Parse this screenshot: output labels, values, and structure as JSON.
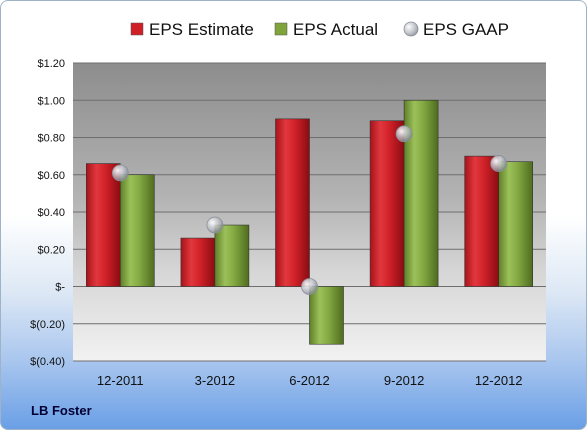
{
  "company": "LB Foster",
  "colors": {
    "estimate": "#d01f26",
    "actual": "#7fa53a",
    "gaap": "#b8bcc4"
  },
  "chart_data": {
    "type": "bar",
    "categories": [
      "12-2011",
      "3-2012",
      "6-2012",
      "9-2012",
      "12-2012"
    ],
    "series": [
      {
        "name": "EPS Estimate",
        "type": "bar",
        "values": [
          0.66,
          0.26,
          0.9,
          0.89,
          0.7
        ]
      },
      {
        "name": "EPS Actual",
        "type": "bar",
        "values": [
          0.6,
          0.33,
          -0.31,
          1.0,
          0.67
        ]
      },
      {
        "name": "EPS GAAP",
        "type": "scatter",
        "values": [
          0.61,
          0.33,
          0.0,
          0.82,
          0.66
        ]
      }
    ],
    "yticks": [
      {
        "value": 1.2,
        "label": "$1.20"
      },
      {
        "value": 1.0,
        "label": "$1.00"
      },
      {
        "value": 0.8,
        "label": "$0.80"
      },
      {
        "value": 0.6,
        "label": "$0.60"
      },
      {
        "value": 0.4,
        "label": "$0.40"
      },
      {
        "value": 0.2,
        "label": "$0.20"
      },
      {
        "value": 0.0,
        "label": "$-"
      },
      {
        "value": -0.2,
        "label": "$(0.20)"
      },
      {
        "value": -0.4,
        "label": "$(0.40)"
      }
    ],
    "ylim": [
      -0.4,
      1.2
    ],
    "grid": true,
    "legend_position": "top"
  }
}
